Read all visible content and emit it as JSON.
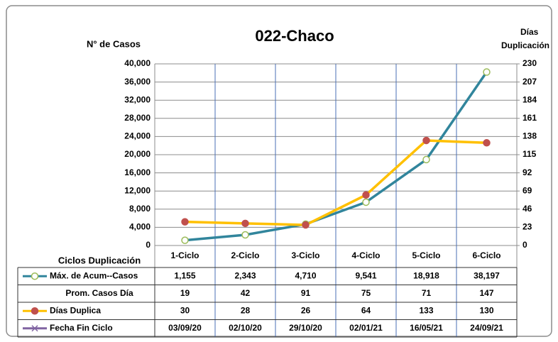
{
  "chart_data": {
    "type": "line",
    "title": "022-Chaco",
    "ylabel": "N° de Casos",
    "y2label": [
      "Días",
      "Duplicación"
    ],
    "xlabel": "Ciclos Duplicación",
    "categories": [
      "1-Ciclo",
      "2-Ciclo",
      "3-Ciclo",
      "4-Ciclo",
      "5-Ciclo",
      "6-Ciclo"
    ],
    "series": [
      {
        "name": "Máx. de Acum--Casos",
        "color": "#31859c",
        "marker_fill": "#ffffff",
        "marker_stroke": "#9bbb59",
        "values": [
          1155,
          2343,
          4710,
          9541,
          18918,
          38197
        ],
        "value_labels": [
          "1,155",
          "2,343",
          "4,710",
          "9,541",
          "18,918",
          "38,197"
        ]
      },
      {
        "name": "Prom. Casos Día",
        "values": [
          19,
          42,
          91,
          75,
          71,
          147
        ]
      },
      {
        "name": "Días Duplica",
        "color": "#ffc000",
        "marker_fill": "#c0504d",
        "marker_stroke": "#c0504d",
        "axis": "y2",
        "values": [
          30,
          28,
          26,
          64,
          133,
          130
        ]
      },
      {
        "name": "Fecha Fin Ciclo",
        "color": "#8064a2",
        "marker": "x",
        "values": [
          "03/09/20",
          "02/10/20",
          "29/10/20",
          "02/01/21",
          "16/05/21",
          "24/09/21"
        ]
      }
    ],
    "ylim": [
      0,
      40000
    ],
    "yticks": [
      0,
      {
        "value": 4000,
        "label": "4,000"
      },
      {
        "value": 8000,
        "label": "8,000"
      },
      {
        "value": 12000,
        "label": "12,000"
      },
      {
        "value": 16000,
        "label": "16,000"
      },
      {
        "value": 20000,
        "label": "20,000"
      },
      {
        "value": 24000,
        "label": "24,000"
      },
      {
        "value": 28000,
        "label": "28,000"
      },
      {
        "value": 32000,
        "label": "32,000"
      },
      {
        "value": 36000,
        "label": "36,000"
      },
      {
        "value": 40000,
        "label": "40,000"
      }
    ],
    "y2lim": [
      0,
      230
    ],
    "y2ticks": [
      0,
      23,
      46,
      69,
      92,
      115,
      138,
      161,
      184,
      207,
      230
    ],
    "grid": true
  }
}
